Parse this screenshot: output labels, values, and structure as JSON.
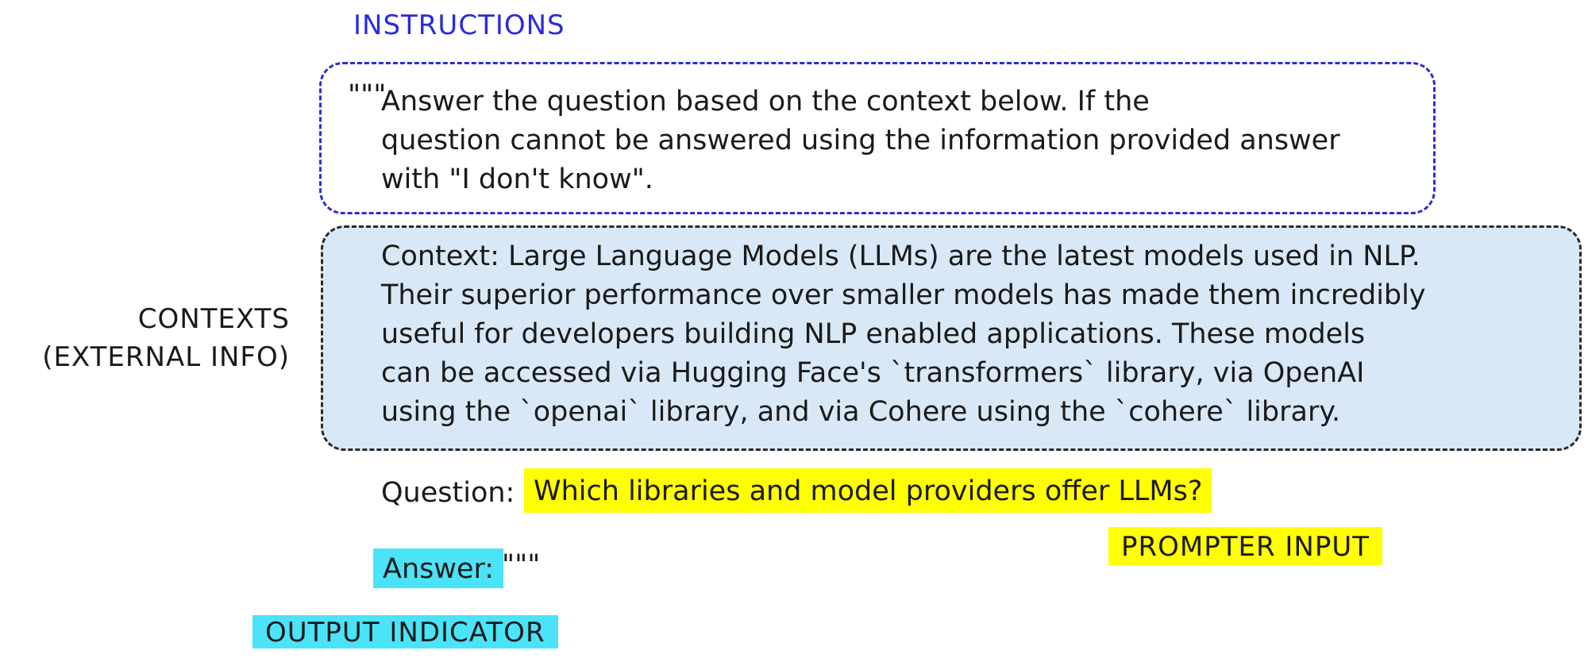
{
  "instructions": {
    "label": "INSTRUCTIONS",
    "open_quote": "\"\"\"",
    "lines": [
      "Answer the question based on the context below. If the",
      "question cannot be answered using the information provided answer",
      "with \"I don't know\"."
    ]
  },
  "contexts": {
    "label_lines": [
      "CONTEXTS",
      "(EXTERNAL INFO)"
    ],
    "lines": [
      "Context: Large Language Models (LLMs) are the latest models used in NLP.",
      "Their superior performance over smaller models has made them incredibly",
      "useful for developers building NLP enabled applications. These models",
      "can be accessed via Hugging Face's `transformers` library, via OpenAI",
      "using the `openai` library, and via Cohere using the `cohere` library."
    ]
  },
  "question": {
    "prefix": "Question:",
    "text": "Which libraries and model providers offer LLMs?"
  },
  "prompter_input": {
    "label": "PROMPTER INPUT"
  },
  "answer": {
    "label": "Answer:",
    "close_quote": "\"\"\""
  },
  "output_indicator": {
    "label": "OUTPUT INDICATOR"
  },
  "colors": {
    "instructions": "#2b2bdb",
    "context_fill": "#d9e8f6",
    "highlight_yellow": "#ffff00",
    "highlight_cyan": "#4be3f7"
  }
}
